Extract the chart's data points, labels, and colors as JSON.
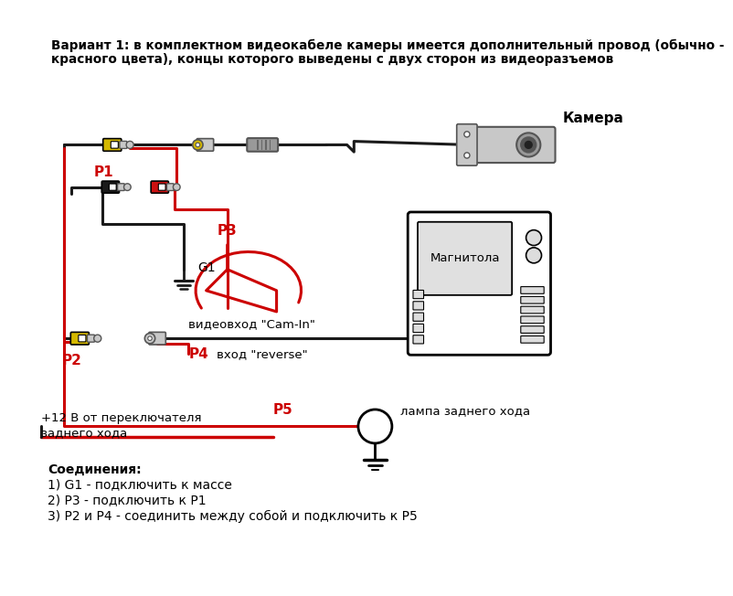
{
  "bg_color": "#ffffff",
  "title_line1": "Вариант 1: в комплектном видеокабеле камеры имеется дополнительный провод (обычно -",
  "title_line2": "красного цвета), концы которого выведены с двух сторон из видеоразъемов",
  "label_camera": "Камера",
  "label_magnitola": "Магнитола",
  "label_cam_in": "видеовход \"Cam-In\"",
  "label_reverse": "вход \"reverse\"",
  "label_lampa": "лампа заднего хода",
  "label_plus12_line1": "+12 В от переключателя",
  "label_plus12_line2": "заднего хода",
  "label_p1": "P1",
  "label_p2": "P2",
  "label_p3": "P3",
  "label_p4": "P4",
  "label_p5": "P5",
  "label_g1": "G1",
  "connections_title": "Соединения:",
  "connections": [
    "1) G1 - подключить к массе",
    "2) P3 - подключить к P1",
    "3) P2 и P4 - соединить между собой и подключить к P5"
  ],
  "color_black": "#000000",
  "color_red": "#cc0000",
  "color_yellow_rca": "#d4b800",
  "color_gray": "#888888",
  "color_lightgray": "#c8c8c8",
  "color_darkgray": "#555555",
  "color_wire_black": "#1a1a1a",
  "color_rca_black": "#222222",
  "color_rca_red": "#cc1111"
}
